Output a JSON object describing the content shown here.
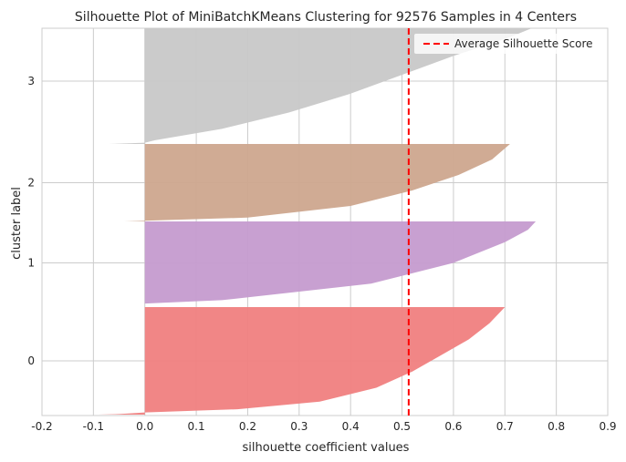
{
  "chart_data": {
    "type": "area",
    "title": "Silhouette Plot of MiniBatchKMeans Clustering for 92576 Samples in 4 Centers",
    "xlabel": "silhouette coefficient values",
    "ylabel": "cluster label",
    "xlim": [
      -0.2,
      0.9
    ],
    "xticks": [
      -0.2,
      -0.1,
      0.0,
      0.1,
      0.2,
      0.3,
      0.4,
      0.5,
      0.6,
      0.7,
      0.8,
      0.9
    ],
    "xtick_labels": [
      "-0.2",
      "-0.1",
      "0.0",
      "0.1",
      "0.2",
      "0.3",
      "0.4",
      "0.5",
      "0.6",
      "0.7",
      "0.8",
      "0.9"
    ],
    "grid": true,
    "legend": {
      "position": "top-right",
      "label": "Average Silhouette Score"
    },
    "average_silhouette_score": 0.513,
    "average_line_color": "#ff0000",
    "clusters": [
      {
        "label": "0",
        "color": "#f08080",
        "profile": [
          [
            0.0,
            0.7
          ],
          [
            0.15,
            0.67
          ],
          [
            0.3,
            0.63
          ],
          [
            0.45,
            0.575
          ],
          [
            0.6,
            0.52
          ],
          [
            0.75,
            0.45
          ],
          [
            0.88,
            0.34
          ],
          [
            0.95,
            0.18
          ],
          [
            0.98,
            0.0
          ],
          [
            0.995,
            -0.05
          ],
          [
            1.0,
            -0.09
          ]
        ]
      },
      {
        "label": "1",
        "color": "#c59bcf",
        "profile": [
          [
            0.0,
            0.76
          ],
          [
            0.1,
            0.745
          ],
          [
            0.25,
            0.7
          ],
          [
            0.5,
            0.6
          ],
          [
            0.75,
            0.44
          ],
          [
            0.95,
            0.15
          ],
          [
            0.99,
            0.0
          ],
          [
            1.0,
            0.0
          ]
        ]
      },
      {
        "label": "2",
        "color": "#cea68e",
        "profile": [
          [
            0.0,
            0.71
          ],
          [
            0.2,
            0.675
          ],
          [
            0.4,
            0.61
          ],
          [
            0.6,
            0.52
          ],
          [
            0.8,
            0.4
          ],
          [
            0.95,
            0.2
          ],
          [
            0.99,
            0.0
          ],
          [
            1.0,
            -0.04
          ]
        ]
      },
      {
        "label": "3",
        "color": "#c8c8c8",
        "profile": [
          [
            0.0,
            0.8
          ],
          [
            0.15,
            0.71
          ],
          [
            0.3,
            0.6
          ],
          [
            0.45,
            0.5
          ],
          [
            0.6,
            0.4
          ],
          [
            0.75,
            0.28
          ],
          [
            0.88,
            0.15
          ],
          [
            0.97,
            0.02
          ],
          [
            0.99,
            0.0
          ],
          [
            1.0,
            -0.07
          ]
        ]
      }
    ]
  }
}
